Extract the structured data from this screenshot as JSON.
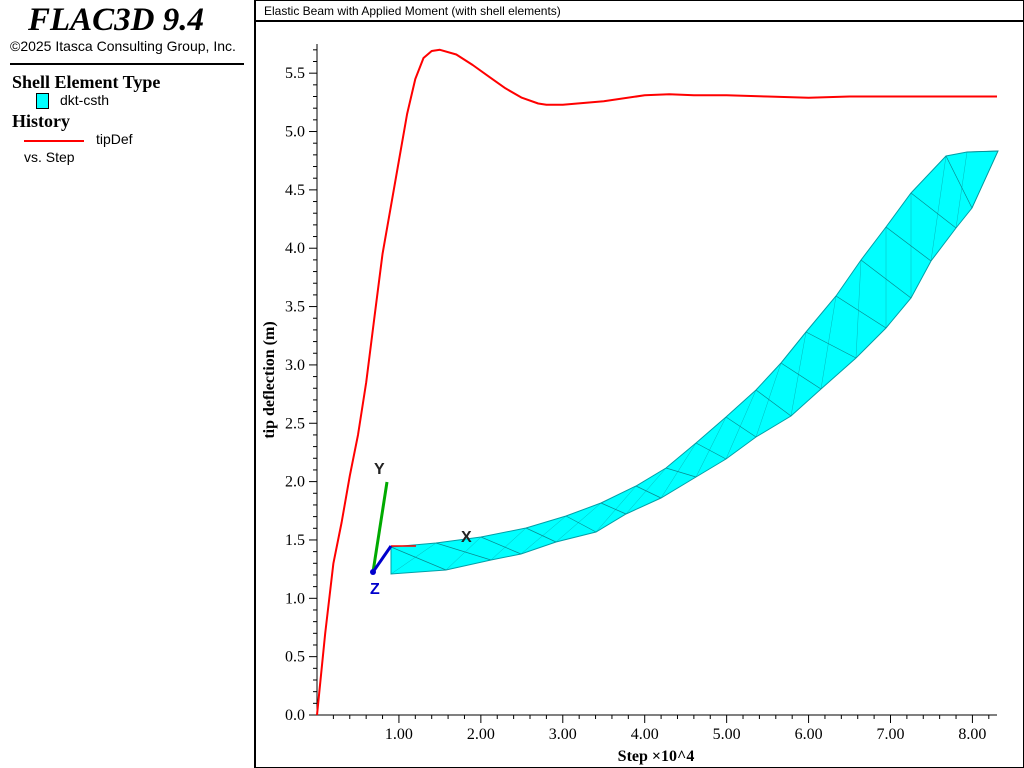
{
  "sidebar": {
    "product_title": "FLAC3D 9.4",
    "copyright": "©2025 Itasca Consulting Group, Inc.",
    "shell_section": {
      "heading": "Shell Element Type",
      "items": [
        {
          "label": "dkt-csth",
          "color": "#00ffff"
        }
      ]
    },
    "history_section": {
      "heading": "History",
      "items": [
        {
          "label": "tipDef",
          "x_label": "vs. Step",
          "color": "#ff0000"
        }
      ]
    }
  },
  "chart_data": {
    "type": "line",
    "title": "Elastic Beam with Applied Moment (with shell elements)",
    "xlabel": "Step ×10^4",
    "ylabel": "tip deflection (m)",
    "xlim": [
      0,
      8.3
    ],
    "ylim": [
      0,
      5.75
    ],
    "x_ticks": [
      "1.00",
      "2.00",
      "3.00",
      "4.00",
      "5.00",
      "6.00",
      "7.00",
      "8.00"
    ],
    "y_ticks": [
      "0.0",
      "0.5",
      "1.0",
      "1.5",
      "2.0",
      "2.5",
      "3.0",
      "3.5",
      "4.0",
      "4.5",
      "5.0",
      "5.5"
    ],
    "series": [
      {
        "name": "tipDef",
        "color": "#ff0000",
        "x": [
          0,
          0.1,
          0.2,
          0.3,
          0.4,
          0.5,
          0.6,
          0.7,
          0.8,
          0.9,
          1.0,
          1.1,
          1.2,
          1.3,
          1.4,
          1.5,
          1.7,
          1.9,
          2.1,
          2.3,
          2.5,
          2.7,
          2.8,
          3.0,
          3.5,
          4.0,
          4.3,
          4.6,
          5.0,
          5.5,
          6.0,
          6.5,
          7.0,
          7.5,
          8.0,
          8.3
        ],
        "y": [
          0.0,
          0.7,
          1.3,
          1.65,
          2.05,
          2.4,
          2.85,
          3.4,
          3.95,
          4.35,
          4.75,
          5.15,
          5.45,
          5.63,
          5.69,
          5.7,
          5.66,
          5.57,
          5.47,
          5.37,
          5.29,
          5.24,
          5.23,
          5.23,
          5.26,
          5.31,
          5.32,
          5.31,
          5.31,
          5.3,
          5.29,
          5.3,
          5.3,
          5.3,
          5.3,
          5.3
        ]
      }
    ]
  },
  "overlay": {
    "shell_color": "#00ffff",
    "triad": {
      "x_label": "X",
      "y_label": "Y",
      "z_label": "Z",
      "x_color": "#ff0000",
      "y_color": "#00aa00",
      "z_color": "#0000cc"
    }
  }
}
